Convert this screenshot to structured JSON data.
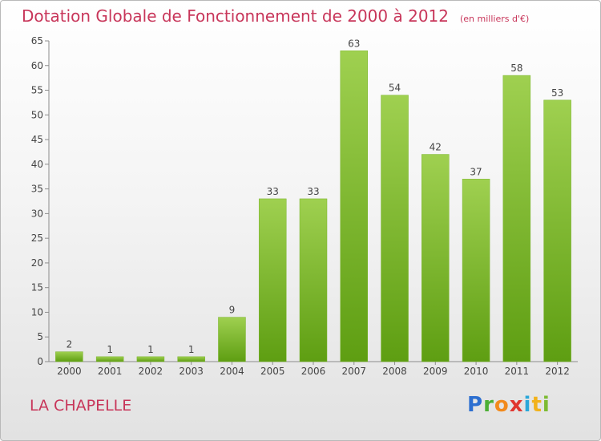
{
  "header": {
    "title": "Dotation Globale de Fonctionnement de 2000 à 2012",
    "subtitle": "(en milliers d'€)"
  },
  "commune": "LA CHAPELLE",
  "logo": {
    "text": "Proxiti",
    "letters": [
      "P",
      "r",
      "o",
      "x",
      "i",
      "t",
      "i"
    ]
  },
  "colors": {
    "bar_top": "#9fd050",
    "bar_bottom": "#5e9e12",
    "title": "#c8365a"
  },
  "chart_data": {
    "type": "bar",
    "categories": [
      "2000",
      "2001",
      "2002",
      "2003",
      "2004",
      "2005",
      "2006",
      "2007",
      "2008",
      "2009",
      "2010",
      "2011",
      "2012"
    ],
    "values": [
      2,
      1,
      1,
      1,
      9,
      33,
      33,
      63,
      54,
      42,
      37,
      58,
      53
    ],
    "title": "Dotation Globale de Fonctionnement de 2000 à 2012",
    "subtitle": "(en milliers d'€)",
    "xlabel": "",
    "ylabel": "",
    "ylim": [
      0,
      65
    ],
    "yticks": [
      0,
      5,
      10,
      15,
      20,
      25,
      30,
      35,
      40,
      45,
      50,
      55,
      60,
      65
    ],
    "grid": false,
    "data_labels": true
  }
}
